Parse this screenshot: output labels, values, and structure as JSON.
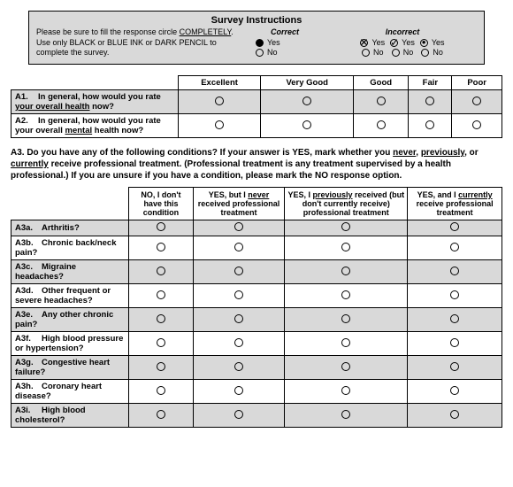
{
  "instructions": {
    "title": "Survey Instructions",
    "text_parts": [
      "Please be sure to fill the response circle ",
      "COMPLETELY",
      ". Use only BLACK or BLUE INK or DARK PENCIL to complete the survey."
    ],
    "correct_label": "Correct",
    "incorrect_label": "Incorrect",
    "yes": "Yes",
    "no": "No"
  },
  "table1": {
    "headers": [
      "Excellent",
      "Very Good",
      "Good",
      "Fair",
      "Poor"
    ],
    "rows": [
      {
        "id": "A1.",
        "pre": "In general, how would you rate ",
        "u": "your overall health",
        "post": " now?",
        "shaded": true
      },
      {
        "id": "A2.",
        "pre": "In general, how would you rate your overall ",
        "u": "mental",
        "post": " health now?",
        "shaded": false
      }
    ]
  },
  "a3_text": {
    "p1": "A3.  Do you have any of the following conditions?  If your answer is YES, mark whether you ",
    "u1": "never",
    "p2": ", ",
    "u2": "previously",
    "p3": ", or ",
    "u3": "currently",
    "p4": " receive professional treatment.  (Professional treatment is any treatment supervised by a health professional.)  If you are unsure if you have a condition, please mark the NO response option."
  },
  "table2": {
    "headers": [
      {
        "pre": "NO, I don't have this condition",
        "u": "",
        "post": ""
      },
      {
        "pre": "YES, but I ",
        "u": "never",
        "post": " received professional treatment"
      },
      {
        "pre": "YES, I ",
        "u": "previously",
        "post": " received (but don't currently receive) professional treatment"
      },
      {
        "pre": "YES, and I ",
        "u": "currently",
        "post": " receive professional treatment"
      }
    ],
    "rows": [
      {
        "id": "A3a.",
        "label": "Arthritis?",
        "shaded": true
      },
      {
        "id": "A3b.",
        "label": "Chronic back/neck pain?",
        "shaded": false
      },
      {
        "id": "A3c.",
        "label": "Migraine headaches?",
        "shaded": true
      },
      {
        "id": "A3d.",
        "label": "Other frequent or severe headaches?",
        "shaded": false
      },
      {
        "id": "A3e.",
        "label": "Any other chronic pain?",
        "shaded": true
      },
      {
        "id": "A3f.",
        "label": "High blood pressure or hypertension?",
        "shaded": false
      },
      {
        "id": "A3g.",
        "label": "Congestive heart failure?",
        "shaded": true
      },
      {
        "id": "A3h.",
        "label": "Coronary heart disease?",
        "shaded": false
      },
      {
        "id": "A3i.",
        "label": "High blood cholesterol?",
        "shaded": true
      }
    ]
  }
}
